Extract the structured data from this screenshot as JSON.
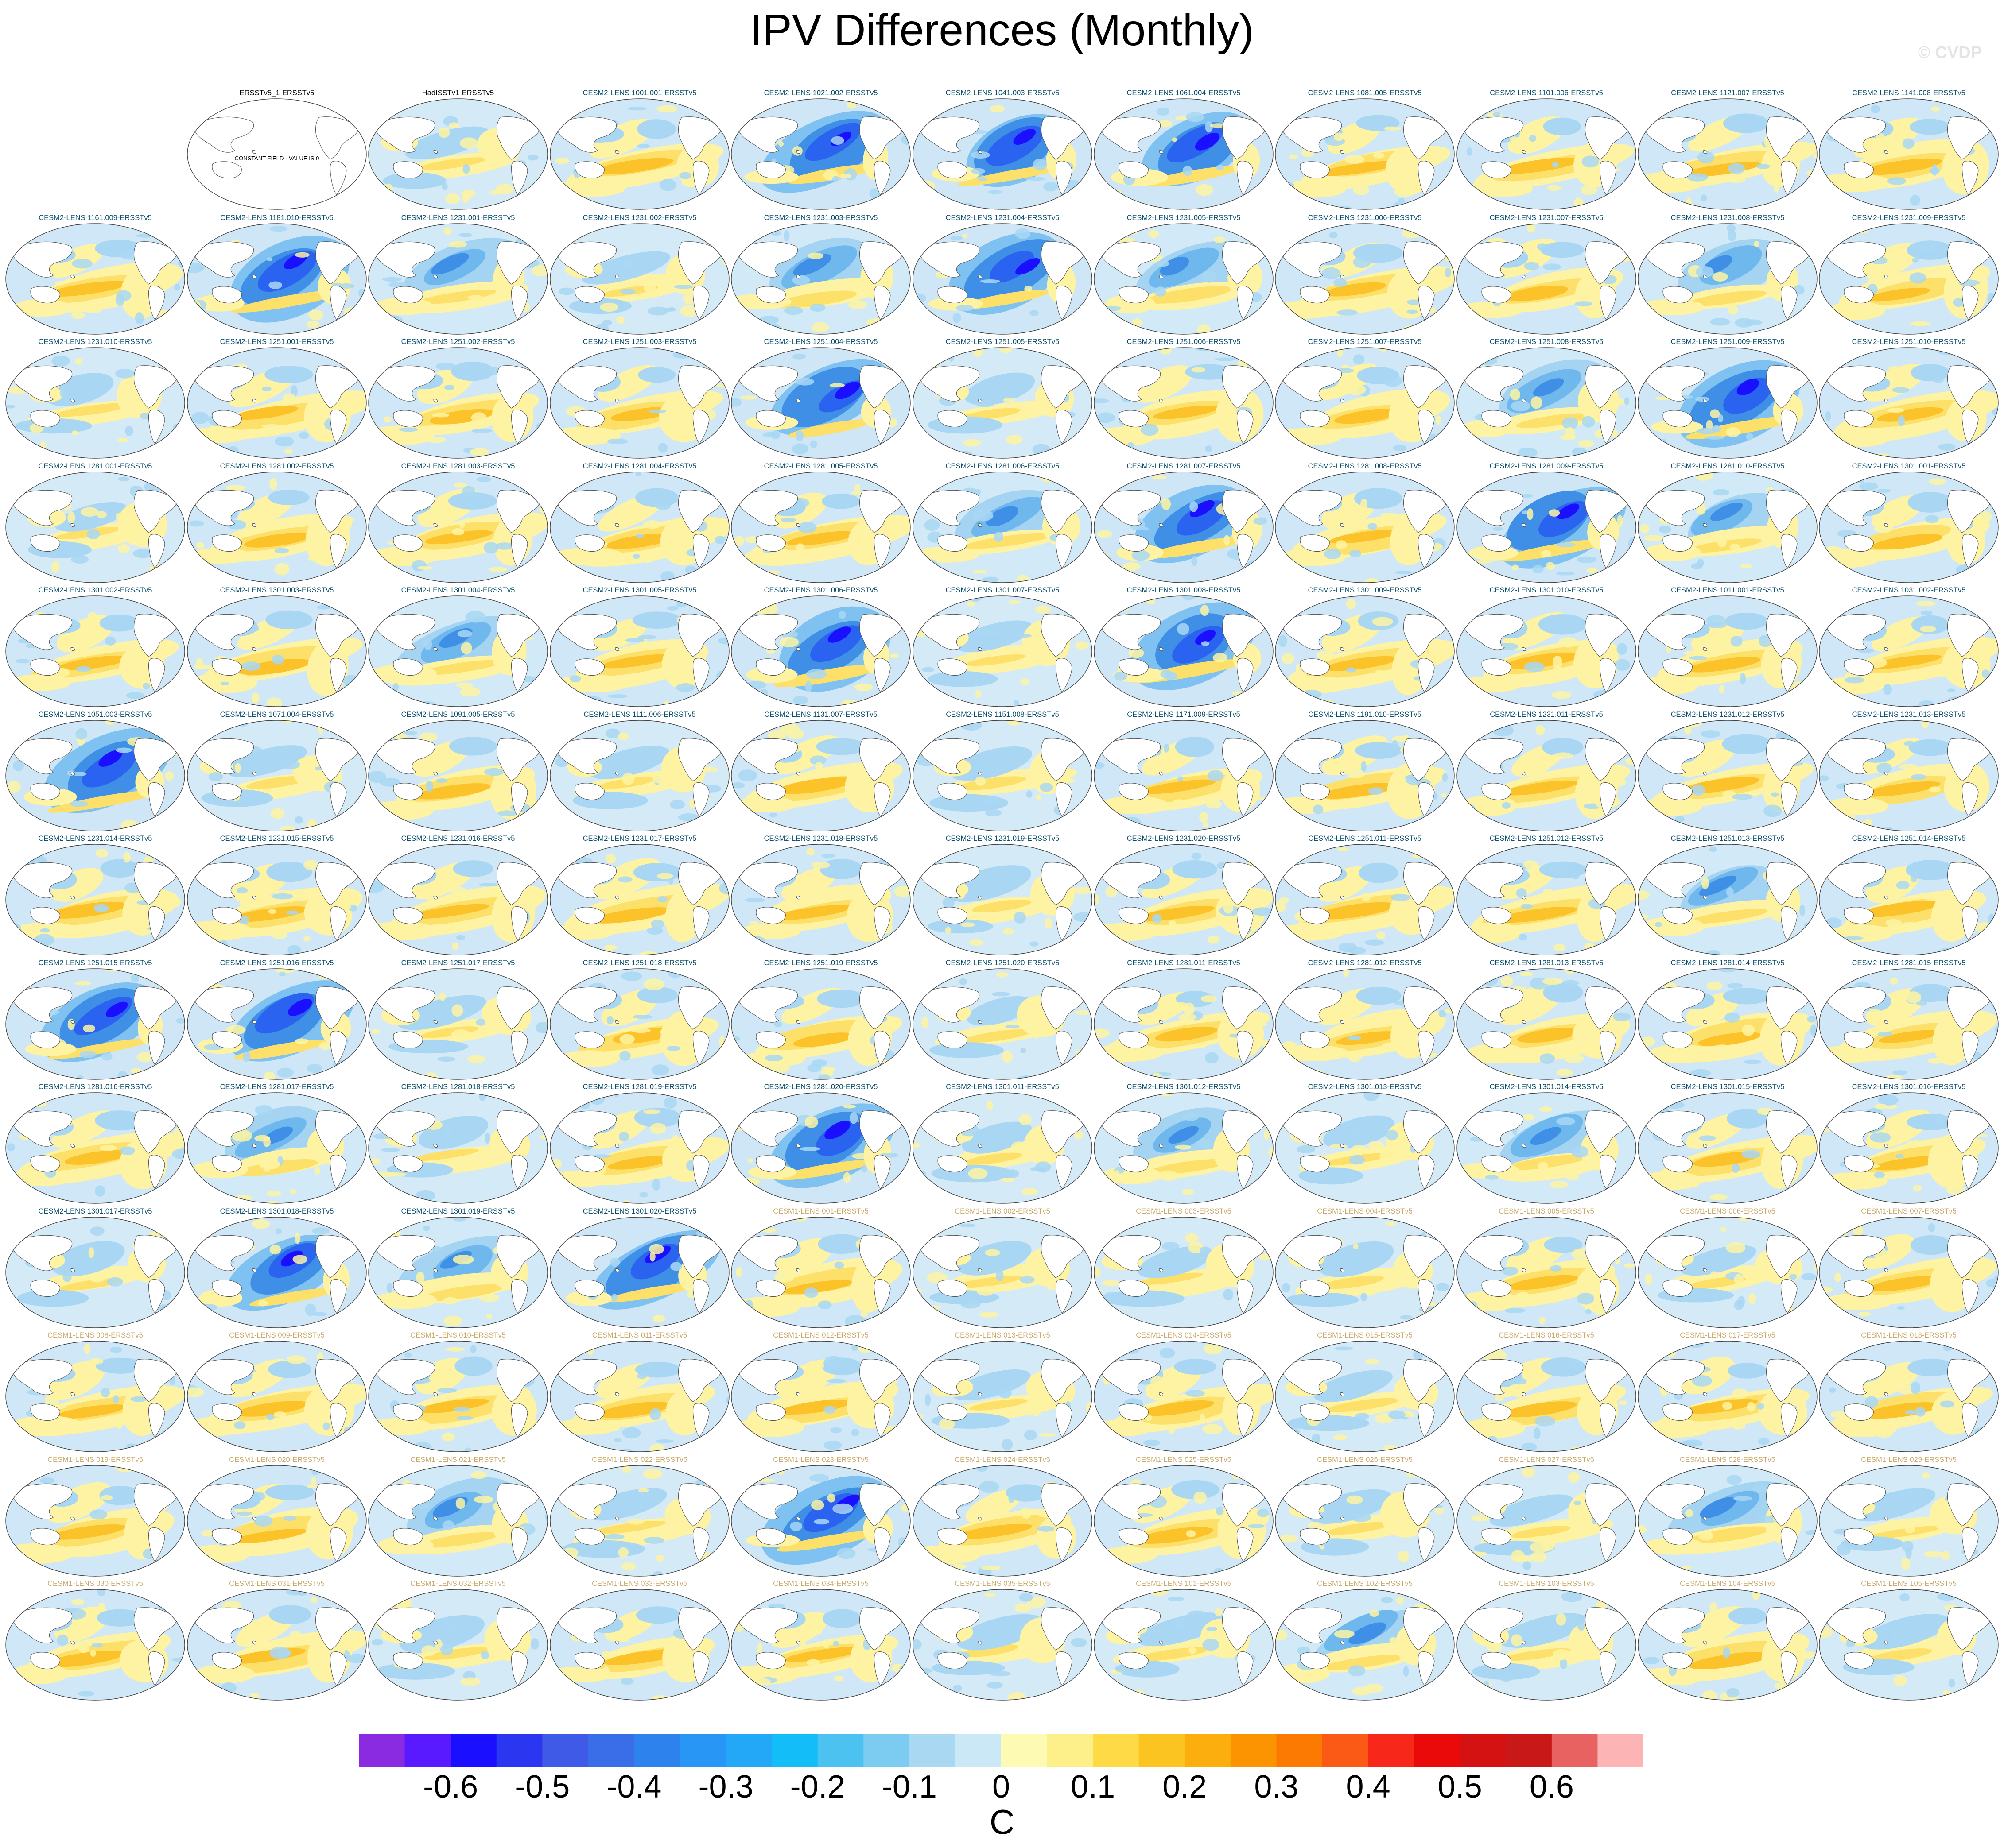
{
  "title": "IPV Differences (Monthly)",
  "watermark": "© CVDP",
  "units": "C",
  "colorbar": {
    "colors": [
      "#8a2be2",
      "#5a1aff",
      "#1a10ff",
      "#2a36f0",
      "#3f5ae6",
      "#3a6de8",
      "#2e82ee",
      "#2796f4",
      "#22a8f6",
      "#13bdf8",
      "#4cc2f0",
      "#7ccbf0",
      "#a8d8f2",
      "#cbe8f6",
      "#fdfbb3",
      "#fdf08a",
      "#fdda46",
      "#fcc420",
      "#fcae0e",
      "#fc9402",
      "#fc7a02",
      "#fa5a16",
      "#f7281a",
      "#ea0a0a",
      "#d41212",
      "#c81818",
      "#e86262",
      "#fdb4b4"
    ],
    "ticks": [
      "-0.6",
      "-0.5",
      "-0.4",
      "-0.3",
      "-0.2",
      "-0.1",
      "0",
      "0.1",
      "0.2",
      "0.3",
      "0.4",
      "0.5",
      "0.6"
    ]
  },
  "chart_data": {
    "type": "heatmap",
    "title": "IPV Differences (Monthly)",
    "units": "C",
    "contour_levels": [
      -0.65,
      -0.6,
      -0.55,
      -0.5,
      -0.45,
      -0.4,
      -0.35,
      -0.3,
      -0.25,
      -0.2,
      -0.15,
      -0.1,
      -0.05,
      0,
      0.05,
      0.1,
      0.15,
      0.2,
      0.25,
      0.3,
      0.35,
      0.4,
      0.45,
      0.5,
      0.55,
      0.6,
      0.65
    ],
    "panels": [
      {
        "name": "ERSSTv5_1-ERSSTv5",
        "group": "obs",
        "pattern": "blank",
        "note": "CONSTANT FIELD - VALUE IS 0"
      },
      {
        "name": "HadISSTv1-ERSSTv5",
        "group": "obs",
        "pattern": "neutral"
      },
      {
        "name": "CESM2-LENS 1001.001-ERSSTv5",
        "group": "cesm2",
        "pattern": "pos"
      },
      {
        "name": "CESM2-LENS 1021.002-ERSSTv5",
        "group": "cesm2",
        "pattern": "strongneg"
      },
      {
        "name": "CESM2-LENS 1041.003-ERSSTv5",
        "group": "cesm2",
        "pattern": "strongneg"
      },
      {
        "name": "CESM2-LENS 1061.004-ERSSTv5",
        "group": "cesm2",
        "pattern": "strongneg"
      },
      {
        "name": "CESM2-LENS 1081.005-ERSSTv5",
        "group": "cesm2",
        "pattern": "pos"
      },
      {
        "name": "CESM2-LENS 1101.006-ERSSTv5",
        "group": "cesm2",
        "pattern": "pos"
      },
      {
        "name": "CESM2-LENS 1121.007-ERSSTv5",
        "group": "cesm2",
        "pattern": "pos"
      },
      {
        "name": "CESM2-LENS 1141.008-ERSSTv5",
        "group": "cesm2",
        "pattern": "pos"
      },
      {
        "name": "CESM2-LENS 1161.009-ERSSTv5",
        "group": "cesm2",
        "pattern": "pos"
      },
      {
        "name": "CESM2-LENS 1181.010-ERSSTv5",
        "group": "cesm2",
        "pattern": "strongneg"
      },
      {
        "name": "CESM2-LENS 1231.001-ERSSTv5",
        "group": "cesm2",
        "pattern": "neg"
      },
      {
        "name": "CESM2-LENS 1231.002-ERSSTv5",
        "group": "cesm2",
        "pattern": "neutral"
      },
      {
        "name": "CESM2-LENS 1231.003-ERSSTv5",
        "group": "cesm2",
        "pattern": "neg"
      },
      {
        "name": "CESM2-LENS 1231.004-ERSSTv5",
        "group": "cesm2",
        "pattern": "strongneg"
      },
      {
        "name": "CESM2-LENS 1231.005-ERSSTv5",
        "group": "cesm2",
        "pattern": "neg"
      },
      {
        "name": "CESM2-LENS 1231.006-ERSSTv5",
        "group": "cesm2",
        "pattern": "pos"
      },
      {
        "name": "CESM2-LENS 1231.007-ERSSTv5",
        "group": "cesm2",
        "pattern": "pos"
      },
      {
        "name": "CESM2-LENS 1231.008-ERSSTv5",
        "group": "cesm2",
        "pattern": "neg"
      },
      {
        "name": "CESM2-LENS 1231.009-ERSSTv5",
        "group": "cesm2",
        "pattern": "pos"
      },
      {
        "name": "CESM2-LENS 1231.010-ERSSTv5",
        "group": "cesm2",
        "pattern": "neutral"
      },
      {
        "name": "CESM2-LENS 1251.001-ERSSTv5",
        "group": "cesm2",
        "pattern": "pos"
      },
      {
        "name": "CESM2-LENS 1251.002-ERSSTv5",
        "group": "cesm2",
        "pattern": "pos"
      },
      {
        "name": "CESM2-LENS 1251.003-ERSSTv5",
        "group": "cesm2",
        "pattern": "pos"
      },
      {
        "name": "CESM2-LENS 1251.004-ERSSTv5",
        "group": "cesm2",
        "pattern": "strongneg"
      },
      {
        "name": "CESM2-LENS 1251.005-ERSSTv5",
        "group": "cesm2",
        "pattern": "neutral"
      },
      {
        "name": "CESM2-LENS 1251.006-ERSSTv5",
        "group": "cesm2",
        "pattern": "pos"
      },
      {
        "name": "CESM2-LENS 1251.007-ERSSTv5",
        "group": "cesm2",
        "pattern": "pos"
      },
      {
        "name": "CESM2-LENS 1251.008-ERSSTv5",
        "group": "cesm2",
        "pattern": "neg"
      },
      {
        "name": "CESM2-LENS 1251.009-ERSSTv5",
        "group": "cesm2",
        "pattern": "strongneg"
      },
      {
        "name": "CESM2-LENS 1251.010-ERSSTv5",
        "group": "cesm2",
        "pattern": "pos"
      },
      {
        "name": "CESM2-LENS 1281.001-ERSSTv5",
        "group": "cesm2",
        "pattern": "neutral"
      },
      {
        "name": "CESM2-LENS 1281.002-ERSSTv5",
        "group": "cesm2",
        "pattern": "pos"
      },
      {
        "name": "CESM2-LENS 1281.003-ERSSTv5",
        "group": "cesm2",
        "pattern": "pos"
      },
      {
        "name": "CESM2-LENS 1281.004-ERSSTv5",
        "group": "cesm2",
        "pattern": "pos"
      },
      {
        "name": "CESM2-LENS 1281.005-ERSSTv5",
        "group": "cesm2",
        "pattern": "pos"
      },
      {
        "name": "CESM2-LENS 1281.006-ERSSTv5",
        "group": "cesm2",
        "pattern": "neg"
      },
      {
        "name": "CESM2-LENS 1281.007-ERSSTv5",
        "group": "cesm2",
        "pattern": "strongneg"
      },
      {
        "name": "CESM2-LENS 1281.008-ERSSTv5",
        "group": "cesm2",
        "pattern": "pos"
      },
      {
        "name": "CESM2-LENS 1281.009-ERSSTv5",
        "group": "cesm2",
        "pattern": "strongneg"
      },
      {
        "name": "CESM2-LENS 1281.010-ERSSTv5",
        "group": "cesm2",
        "pattern": "neg"
      },
      {
        "name": "CESM2-LENS 1301.001-ERSSTv5",
        "group": "cesm2",
        "pattern": "pos"
      },
      {
        "name": "CESM2-LENS 1301.002-ERSSTv5",
        "group": "cesm2",
        "pattern": "pos"
      },
      {
        "name": "CESM2-LENS 1301.003-ERSSTv5",
        "group": "cesm2",
        "pattern": "pos"
      },
      {
        "name": "CESM2-LENS 1301.004-ERSSTv5",
        "group": "cesm2",
        "pattern": "neg"
      },
      {
        "name": "CESM2-LENS 1301.005-ERSSTv5",
        "group": "cesm2",
        "pattern": "pos"
      },
      {
        "name": "CESM2-LENS 1301.006-ERSSTv5",
        "group": "cesm2",
        "pattern": "strongneg"
      },
      {
        "name": "CESM2-LENS 1301.007-ERSSTv5",
        "group": "cesm2",
        "pattern": "neutral"
      },
      {
        "name": "CESM2-LENS 1301.008-ERSSTv5",
        "group": "cesm2",
        "pattern": "strongneg"
      },
      {
        "name": "CESM2-LENS 1301.009-ERSSTv5",
        "group": "cesm2",
        "pattern": "pos"
      },
      {
        "name": "CESM2-LENS 1301.010-ERSSTv5",
        "group": "cesm2",
        "pattern": "pos"
      },
      {
        "name": "CESM2-LENS 1011.001-ERSSTv5",
        "group": "cesm2",
        "pattern": "pos"
      },
      {
        "name": "CESM2-LENS 1031.002-ERSSTv5",
        "group": "cesm2",
        "pattern": "pos"
      },
      {
        "name": "CESM2-LENS 1051.003-ERSSTv5",
        "group": "cesm2",
        "pattern": "strongneg"
      },
      {
        "name": "CESM2-LENS 1071.004-ERSSTv5",
        "group": "cesm2",
        "pattern": "neutral"
      },
      {
        "name": "CESM2-LENS 1091.005-ERSSTv5",
        "group": "cesm2",
        "pattern": "pos"
      },
      {
        "name": "CESM2-LENS 1111.006-ERSSTv5",
        "group": "cesm2",
        "pattern": "neutral"
      },
      {
        "name": "CESM2-LENS 1131.007-ERSSTv5",
        "group": "cesm2",
        "pattern": "pos"
      },
      {
        "name": "CESM2-LENS 1151.008-ERSSTv5",
        "group": "cesm2",
        "pattern": "neutral"
      },
      {
        "name": "CESM2-LENS 1171.009-ERSSTv5",
        "group": "cesm2",
        "pattern": "pos"
      },
      {
        "name": "CESM2-LENS 1191.010-ERSSTv5",
        "group": "cesm2",
        "pattern": "pos"
      },
      {
        "name": "CESM2-LENS 1231.011-ERSSTv5",
        "group": "cesm2",
        "pattern": "pos"
      },
      {
        "name": "CESM2-LENS 1231.012-ERSSTv5",
        "group": "cesm2",
        "pattern": "pos"
      },
      {
        "name": "CESM2-LENS 1231.013-ERSSTv5",
        "group": "cesm2",
        "pattern": "pos"
      },
      {
        "name": "CESM2-LENS 1231.014-ERSSTv5",
        "group": "cesm2",
        "pattern": "pos"
      },
      {
        "name": "CESM2-LENS 1231.015-ERSSTv5",
        "group": "cesm2",
        "pattern": "pos"
      },
      {
        "name": "CESM2-LENS 1231.016-ERSSTv5",
        "group": "cesm2",
        "pattern": "pos"
      },
      {
        "name": "CESM2-LENS 1231.017-ERSSTv5",
        "group": "cesm2",
        "pattern": "pos"
      },
      {
        "name": "CESM2-LENS 1231.018-ERSSTv5",
        "group": "cesm2",
        "pattern": "pos"
      },
      {
        "name": "CESM2-LENS 1231.019-ERSSTv5",
        "group": "cesm2",
        "pattern": "neutral"
      },
      {
        "name": "CESM2-LENS 1231.020-ERSSTv5",
        "group": "cesm2",
        "pattern": "pos"
      },
      {
        "name": "CESM2-LENS 1251.011-ERSSTv5",
        "group": "cesm2",
        "pattern": "pos"
      },
      {
        "name": "CESM2-LENS 1251.012-ERSSTv5",
        "group": "cesm2",
        "pattern": "pos"
      },
      {
        "name": "CESM2-LENS 1251.013-ERSSTv5",
        "group": "cesm2",
        "pattern": "neg"
      },
      {
        "name": "CESM2-LENS 1251.014-ERSSTv5",
        "group": "cesm2",
        "pattern": "pos"
      },
      {
        "name": "CESM2-LENS 1251.015-ERSSTv5",
        "group": "cesm2",
        "pattern": "strongneg"
      },
      {
        "name": "CESM2-LENS 1251.016-ERSSTv5",
        "group": "cesm2",
        "pattern": "strongneg"
      },
      {
        "name": "CESM2-LENS 1251.017-ERSSTv5",
        "group": "cesm2",
        "pattern": "neutral"
      },
      {
        "name": "CESM2-LENS 1251.018-ERSSTv5",
        "group": "cesm2",
        "pattern": "pos"
      },
      {
        "name": "CESM2-LENS 1251.019-ERSSTv5",
        "group": "cesm2",
        "pattern": "pos"
      },
      {
        "name": "CESM2-LENS 1251.020-ERSSTv5",
        "group": "cesm2",
        "pattern": "neutral"
      },
      {
        "name": "CESM2-LENS 1281.011-ERSSTv5",
        "group": "cesm2",
        "pattern": "pos"
      },
      {
        "name": "CESM2-LENS 1281.012-ERSSTv5",
        "group": "cesm2",
        "pattern": "pos"
      },
      {
        "name": "CESM2-LENS 1281.013-ERSSTv5",
        "group": "cesm2",
        "pattern": "pos"
      },
      {
        "name": "CESM2-LENS 1281.014-ERSSTv5",
        "group": "cesm2",
        "pattern": "pos"
      },
      {
        "name": "CESM2-LENS 1281.015-ERSSTv5",
        "group": "cesm2",
        "pattern": "pos"
      },
      {
        "name": "CESM2-LENS 1281.016-ERSSTv5",
        "group": "cesm2",
        "pattern": "pos"
      },
      {
        "name": "CESM2-LENS 1281.017-ERSSTv5",
        "group": "cesm2",
        "pattern": "neg"
      },
      {
        "name": "CESM2-LENS 1281.018-ERSSTv5",
        "group": "cesm2",
        "pattern": "neutral"
      },
      {
        "name": "CESM2-LENS 1281.019-ERSSTv5",
        "group": "cesm2",
        "pattern": "pos"
      },
      {
        "name": "CESM2-LENS 1281.020-ERSSTv5",
        "group": "cesm2",
        "pattern": "strongneg"
      },
      {
        "name": "CESM2-LENS 1301.011-ERSSTv5",
        "group": "cesm2",
        "pattern": "neutral"
      },
      {
        "name": "CESM2-LENS 1301.012-ERSSTv5",
        "group": "cesm2",
        "pattern": "neg"
      },
      {
        "name": "CESM2-LENS 1301.013-ERSSTv5",
        "group": "cesm2",
        "pattern": "neutral"
      },
      {
        "name": "CESM2-LENS 1301.014-ERSSTv5",
        "group": "cesm2",
        "pattern": "neg"
      },
      {
        "name": "CESM2-LENS 1301.015-ERSSTv5",
        "group": "cesm2",
        "pattern": "pos"
      },
      {
        "name": "CESM2-LENS 1301.016-ERSSTv5",
        "group": "cesm2",
        "pattern": "pos"
      },
      {
        "name": "CESM2-LENS 1301.017-ERSSTv5",
        "group": "cesm2",
        "pattern": "neutral"
      },
      {
        "name": "CESM2-LENS 1301.018-ERSSTv5",
        "group": "cesm2",
        "pattern": "strongneg"
      },
      {
        "name": "CESM2-LENS 1301.019-ERSSTv5",
        "group": "cesm2",
        "pattern": "neg"
      },
      {
        "name": "CESM2-LENS 1301.020-ERSSTv5",
        "group": "cesm2",
        "pattern": "strongneg"
      },
      {
        "name": "CESM1-LENS 001-ERSSTv5",
        "group": "cesm1",
        "pattern": "pos"
      },
      {
        "name": "CESM1-LENS 002-ERSSTv5",
        "group": "cesm1",
        "pattern": "neutral"
      },
      {
        "name": "CESM1-LENS 003-ERSSTv5",
        "group": "cesm1",
        "pattern": "neutral"
      },
      {
        "name": "CESM1-LENS 004-ERSSTv5",
        "group": "cesm1",
        "pattern": "neutral"
      },
      {
        "name": "CESM1-LENS 005-ERSSTv5",
        "group": "cesm1",
        "pattern": "pos"
      },
      {
        "name": "CESM1-LENS 006-ERSSTv5",
        "group": "cesm1",
        "pattern": "neutral"
      },
      {
        "name": "CESM1-LENS 007-ERSSTv5",
        "group": "cesm1",
        "pattern": "pos"
      },
      {
        "name": "CESM1-LENS 008-ERSSTv5",
        "group": "cesm1",
        "pattern": "pos"
      },
      {
        "name": "CESM1-LENS 009-ERSSTv5",
        "group": "cesm1",
        "pattern": "pos"
      },
      {
        "name": "CESM1-LENS 010-ERSSTv5",
        "group": "cesm1",
        "pattern": "pos"
      },
      {
        "name": "CESM1-LENS 011-ERSSTv5",
        "group": "cesm1",
        "pattern": "pos"
      },
      {
        "name": "CESM1-LENS 012-ERSSTv5",
        "group": "cesm1",
        "pattern": "pos"
      },
      {
        "name": "CESM1-LENS 013-ERSSTv5",
        "group": "cesm1",
        "pattern": "neutral"
      },
      {
        "name": "CESM1-LENS 014-ERSSTv5",
        "group": "cesm1",
        "pattern": "pos"
      },
      {
        "name": "CESM1-LENS 015-ERSSTv5",
        "group": "cesm1",
        "pattern": "neutral"
      },
      {
        "name": "CESM1-LENS 016-ERSSTv5",
        "group": "cesm1",
        "pattern": "pos"
      },
      {
        "name": "CESM1-LENS 017-ERSSTv5",
        "group": "cesm1",
        "pattern": "pos"
      },
      {
        "name": "CESM1-LENS 018-ERSSTv5",
        "group": "cesm1",
        "pattern": "pos"
      },
      {
        "name": "CESM1-LENS 019-ERSSTv5",
        "group": "cesm1",
        "pattern": "pos"
      },
      {
        "name": "CESM1-LENS 020-ERSSTv5",
        "group": "cesm1",
        "pattern": "pos"
      },
      {
        "name": "CESM1-LENS 021-ERSSTv5",
        "group": "cesm1",
        "pattern": "neg"
      },
      {
        "name": "CESM1-LENS 022-ERSSTv5",
        "group": "cesm1",
        "pattern": "neutral"
      },
      {
        "name": "CESM1-LENS 023-ERSSTv5",
        "group": "cesm1",
        "pattern": "strongneg"
      },
      {
        "name": "CESM1-LENS 024-ERSSTv5",
        "group": "cesm1",
        "pattern": "pos"
      },
      {
        "name": "CESM1-LENS 025-ERSSTv5",
        "group": "cesm1",
        "pattern": "pos"
      },
      {
        "name": "CESM1-LENS 026-ERSSTv5",
        "group": "cesm1",
        "pattern": "neutral"
      },
      {
        "name": "CESM1-LENS 027-ERSSTv5",
        "group": "cesm1",
        "pattern": "neutral"
      },
      {
        "name": "CESM1-LENS 028-ERSSTv5",
        "group": "cesm1",
        "pattern": "neg"
      },
      {
        "name": "CESM1-LENS 029-ERSSTv5",
        "group": "cesm1",
        "pattern": "neutral"
      },
      {
        "name": "CESM1-LENS 030-ERSSTv5",
        "group": "cesm1",
        "pattern": "pos"
      },
      {
        "name": "CESM1-LENS 031-ERSSTv5",
        "group": "cesm1",
        "pattern": "pos"
      },
      {
        "name": "CESM1-LENS 032-ERSSTv5",
        "group": "cesm1",
        "pattern": "neutral"
      },
      {
        "name": "CESM1-LENS 033-ERSSTv5",
        "group": "cesm1",
        "pattern": "pos"
      },
      {
        "name": "CESM1-LENS 034-ERSSTv5",
        "group": "cesm1",
        "pattern": "pos"
      },
      {
        "name": "CESM1-LENS 035-ERSSTv5",
        "group": "cesm1",
        "pattern": "neutral"
      },
      {
        "name": "CESM1-LENS 101-ERSSTv5",
        "group": "cesm1",
        "pattern": "neutral"
      },
      {
        "name": "CESM1-LENS 102-ERSSTv5",
        "group": "cesm1",
        "pattern": "neg"
      },
      {
        "name": "CESM1-LENS 103-ERSSTv5",
        "group": "cesm1",
        "pattern": "neutral"
      },
      {
        "name": "CESM1-LENS 104-ERSSTv5",
        "group": "cesm1",
        "pattern": "pos"
      },
      {
        "name": "CESM1-LENS 105-ERSSTv5",
        "group": "cesm1",
        "pattern": "neutral"
      }
    ]
  }
}
